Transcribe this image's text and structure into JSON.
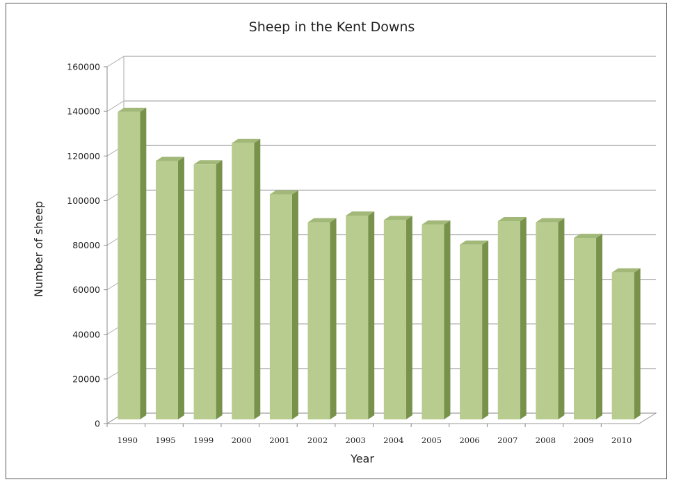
{
  "chart_data": {
    "type": "bar",
    "title": "Sheep in the Kent Downs",
    "xlabel": "Year",
    "ylabel": "Number of sheep",
    "categories": [
      "1990",
      "1995",
      "1999",
      "2000",
      "2001",
      "2002",
      "2003",
      "2004",
      "2005",
      "2006",
      "2007",
      "2008",
      "2009",
      "2010"
    ],
    "values": [
      141000,
      119000,
      117500,
      127000,
      104000,
      91500,
      94500,
      92500,
      90500,
      81500,
      92000,
      91500,
      84500,
      69000
    ],
    "ylim": [
      0,
      160000
    ],
    "yticks": [
      "0",
      "20000",
      "40000",
      "60000",
      "80000",
      "100000",
      "120000",
      "140000",
      "160000"
    ],
    "grid": true,
    "legend": "none",
    "three_d": true,
    "colors": {
      "bar_front": "#b7cc8e",
      "bar_side": "#78924c",
      "bar_top": "#a2b878",
      "gridline": "#aaaaaa"
    }
  }
}
